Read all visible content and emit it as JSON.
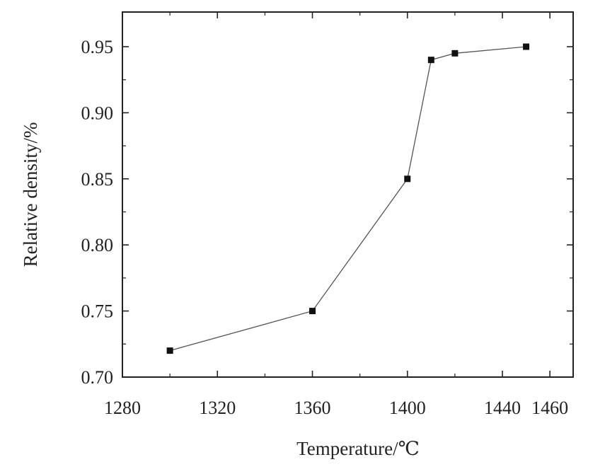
{
  "chart_data": {
    "type": "line",
    "title": "",
    "xlabel": "Temperature/℃",
    "ylabel": "Relative density/%",
    "xlim": [
      1280,
      1460
    ],
    "ylim": [
      0.7,
      0.97
    ],
    "xticks": [
      1280,
      1320,
      1360,
      1400,
      1440,
      1460
    ],
    "xtick_labels": [
      "1280",
      "1320",
      "1360",
      "1400",
      "1440",
      "1460"
    ],
    "yticks": [
      0.7,
      0.75,
      0.8,
      0.85,
      0.9,
      0.95
    ],
    "ytick_labels": [
      "0.70",
      "0.75",
      "0.80",
      "0.85",
      "0.90",
      "0.95"
    ],
    "grid": false,
    "legend": "none",
    "marker": "square",
    "colors": {
      "line": "#555555",
      "marker": "#111111",
      "axis": "#222222"
    },
    "series": [
      {
        "x": [
          1300,
          1360,
          1400,
          1410,
          1420,
          1450
        ],
        "y": [
          0.72,
          0.75,
          0.85,
          0.94,
          0.945,
          0.95
        ]
      }
    ]
  }
}
